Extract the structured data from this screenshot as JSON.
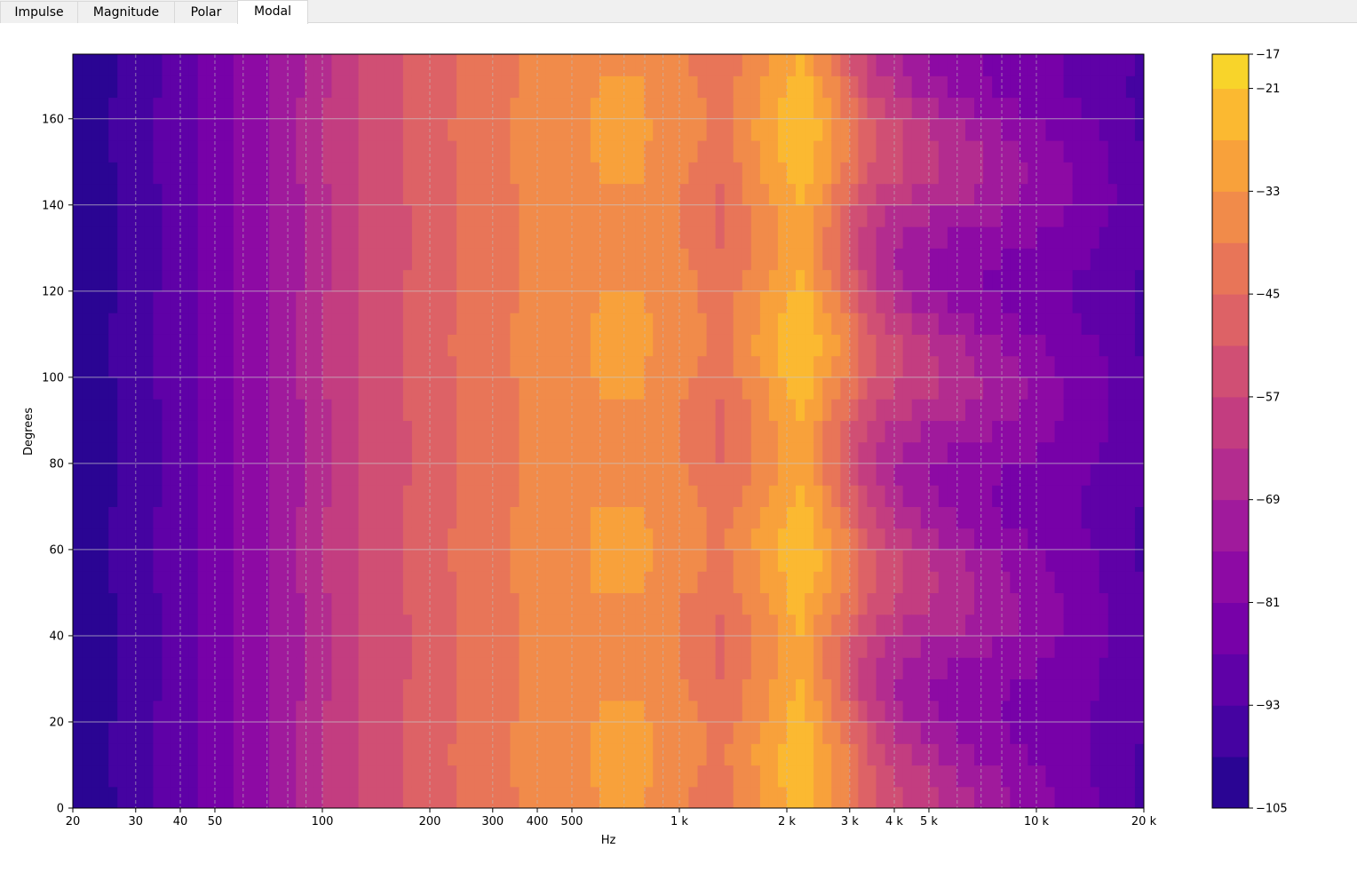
{
  "tabs": [
    {
      "label": "Impulse",
      "active": false
    },
    {
      "label": "Magnitude",
      "active": false
    },
    {
      "label": "Polar",
      "active": false
    },
    {
      "label": "Modal",
      "active": true
    }
  ],
  "chart_data": {
    "type": "heatmap",
    "subtype": "filled-contour",
    "xlabel": "Hz",
    "ylabel": "Degrees",
    "x_scale": "log",
    "xlim": [
      20,
      20000
    ],
    "ylim": [
      0,
      175
    ],
    "grid": true,
    "colormap": "plasma",
    "x_ticks": [
      {
        "value": 20,
        "label": "20"
      },
      {
        "value": 30,
        "label": "30"
      },
      {
        "value": 40,
        "label": "40"
      },
      {
        "value": 50,
        "label": "50"
      },
      {
        "value": 100,
        "label": "100"
      },
      {
        "value": 200,
        "label": "200"
      },
      {
        "value": 300,
        "label": "300"
      },
      {
        "value": 400,
        "label": "400"
      },
      {
        "value": 500,
        "label": "500"
      },
      {
        "value": 1000,
        "label": "1 k"
      },
      {
        "value": 2000,
        "label": "2 k"
      },
      {
        "value": 3000,
        "label": "3 k"
      },
      {
        "value": 4000,
        "label": "4 k"
      },
      {
        "value": 5000,
        "label": "5 k"
      },
      {
        "value": 10000,
        "label": "10 k"
      },
      {
        "value": 20000,
        "label": "20 k"
      }
    ],
    "y_ticks": [
      0,
      20,
      40,
      60,
      80,
      100,
      120,
      140,
      160
    ],
    "colorbar": {
      "min": -105,
      "max": -17,
      "ticks": [
        -17,
        -21,
        -33,
        -45,
        -57,
        -69,
        -81,
        -93,
        -105
      ],
      "tick_labels": [
        "−17",
        "−21",
        "−33",
        "−45",
        "−57",
        "−69",
        "−81",
        "−93",
        "−105"
      ],
      "levels": [
        -105,
        -99,
        -93,
        -87,
        -81,
        -75,
        -69,
        -63,
        -57,
        -51,
        -45,
        -39,
        -33,
        -27,
        -21,
        -17
      ],
      "colors": [
        "#2a0593",
        "#4503a1",
        "#5f01a7",
        "#7701a8",
        "#8d0aa4",
        "#a01a9c",
        "#b32c8f",
        "#c33d80",
        "#d04f74",
        "#dd6266",
        "#e87558",
        "#f18b4a",
        "#f8a13b",
        "#fbb931",
        "#f8d42a",
        "#f2ea25"
      ]
    },
    "level_profile": {
      "x_hz": [
        20,
        25,
        30,
        40,
        50,
        60,
        80,
        100,
        130,
        180,
        250,
        350,
        450,
        600,
        800,
        1000,
        1300,
        1700,
        2200,
        2800,
        3500,
        4500,
        6000,
        8000,
        11000,
        15000,
        20000
      ],
      "db_low": [
        -102,
        -100,
        -96,
        -90,
        -84,
        -79,
        -72,
        -64,
        -56,
        -50,
        -44,
        -39,
        -35,
        -33,
        -33,
        -36,
        -42,
        -33,
        -23,
        -36,
        -52,
        -60,
        -66,
        -72,
        -78,
        -84,
        -90
      ],
      "db_high": [
        -102,
        -100,
        -96,
        -90,
        -84,
        -79,
        -72,
        -64,
        -56,
        -50,
        -44,
        -39,
        -35,
        -33,
        -33,
        -40,
        -46,
        -36,
        -26,
        -44,
        -62,
        -72,
        -78,
        -82,
        -86,
        -90,
        -96
      ]
    }
  }
}
